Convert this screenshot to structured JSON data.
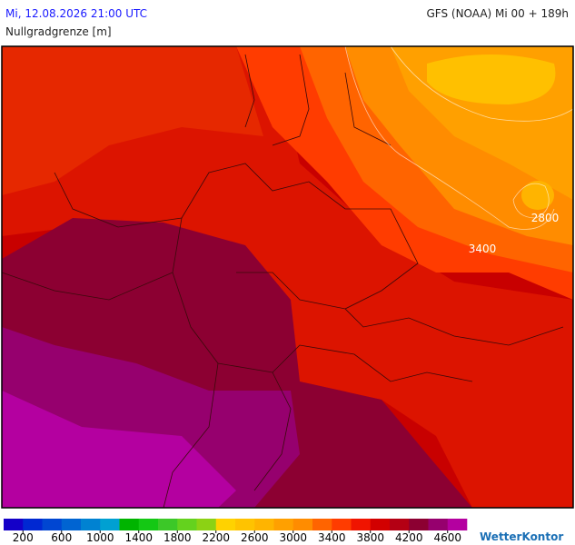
{
  "header": {
    "valid_time": "Mi, 12.08.2026 21:00 UTC",
    "model": "GFS (NOAA) Mi 00 + 189h",
    "parameter": "Nullgradgrenze [m]"
  },
  "map": {
    "contour_labels": [
      "2800",
      "3400"
    ]
  },
  "colorbar": {
    "range": [
      0,
      4800
    ],
    "colors": [
      "#1400c8",
      "#0028d2",
      "#0046d2",
      "#0064d2",
      "#0082d2",
      "#00a0d2",
      "#00b400",
      "#14c814",
      "#3cc828",
      "#64d21e",
      "#8cd214",
      "#ffd200",
      "#ffc300",
      "#ffb400",
      "#ffa000",
      "#ff8c00",
      "#ff6400",
      "#ff3c00",
      "#f01400",
      "#d20000",
      "#b40014",
      "#8c0032",
      "#96006e",
      "#b400a0"
    ],
    "ticks": [
      200,
      600,
      1000,
      1400,
      1800,
      2200,
      2600,
      3000,
      3400,
      3800,
      4200,
      4600
    ]
  },
  "logo": "WetterKontor"
}
